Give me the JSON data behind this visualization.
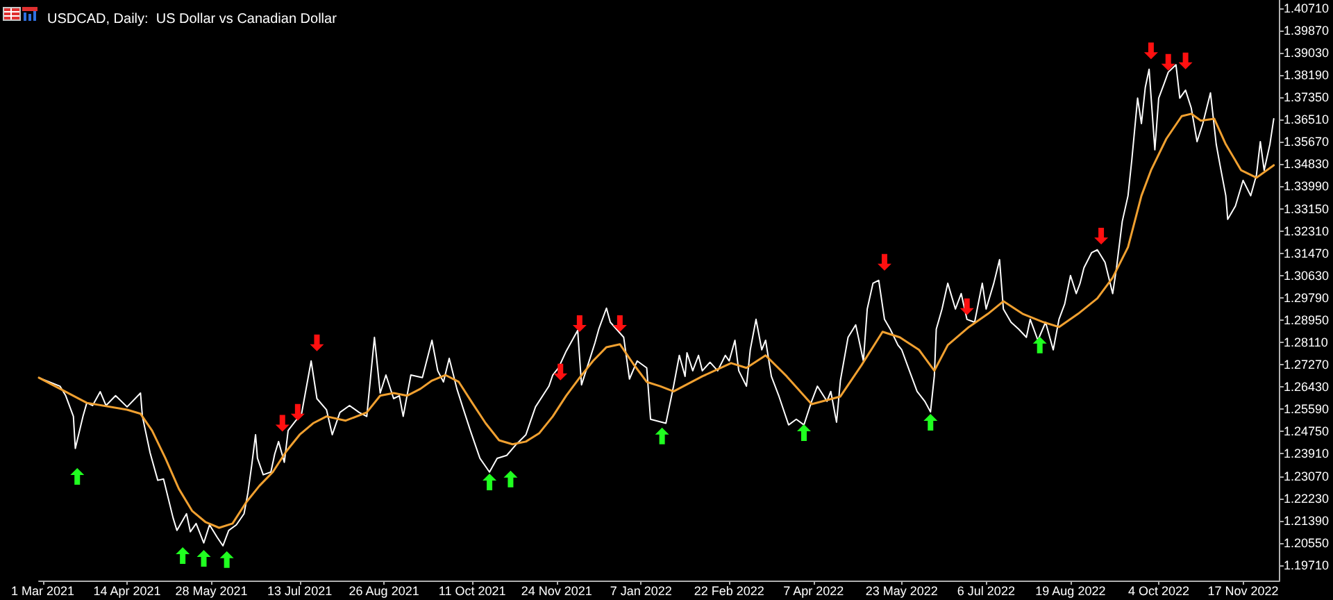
{
  "chart_data": {
    "type": "line",
    "title": "USDCAD, Daily:  US Dollar vs Canadian Dollar",
    "xlim": [
      "2021-02-27",
      "2022-12-06"
    ],
    "ylim": [
      1.1913,
      1.4102
    ],
    "xticks": [
      {
        "value": "2021-03-01",
        "label": "1 Mar 2021"
      },
      {
        "value": "2021-04-14",
        "label": "14 Apr 2021"
      },
      {
        "value": "2021-05-28",
        "label": "28 May 2021"
      },
      {
        "value": "2021-07-13",
        "label": "13 Jul 2021"
      },
      {
        "value": "2021-08-26",
        "label": "26 Aug 2021"
      },
      {
        "value": "2021-10-11",
        "label": "11 Oct 2021"
      },
      {
        "value": "2021-11-24",
        "label": "24 Nov 2021"
      },
      {
        "value": "2022-01-07",
        "label": "7 Jan 2022"
      },
      {
        "value": "2022-02-22",
        "label": "22 Feb 2022"
      },
      {
        "value": "2022-04-07",
        "label": "7 Apr 2022"
      },
      {
        "value": "2022-05-23",
        "label": "23 May 2022"
      },
      {
        "value": "2022-07-06",
        "label": "6 Jul 2022"
      },
      {
        "value": "2022-08-19",
        "label": "19 Aug 2022"
      },
      {
        "value": "2022-10-04",
        "label": "4 Oct 2022"
      },
      {
        "value": "2022-11-17",
        "label": "17 Nov 2022"
      }
    ],
    "yticks": [
      {
        "value": 1.1971,
        "label": "1.19710"
      },
      {
        "value": 1.2055,
        "label": "1.20550"
      },
      {
        "value": 1.2139,
        "label": "1.21390"
      },
      {
        "value": 1.2223,
        "label": "1.22230"
      },
      {
        "value": 1.2307,
        "label": "1.23070"
      },
      {
        "value": 1.2391,
        "label": "1.23910"
      },
      {
        "value": 1.2475,
        "label": "1.24750"
      },
      {
        "value": 1.2559,
        "label": "1.25590"
      },
      {
        "value": 1.2643,
        "label": "1.26430"
      },
      {
        "value": 1.2727,
        "label": "1.27270"
      },
      {
        "value": 1.2811,
        "label": "1.28110"
      },
      {
        "value": 1.2895,
        "label": "1.28950"
      },
      {
        "value": 1.2979,
        "label": "1.29790"
      },
      {
        "value": 1.3063,
        "label": "1.30630"
      },
      {
        "value": 1.3147,
        "label": "1.31470"
      },
      {
        "value": 1.3231,
        "label": "1.32310"
      },
      {
        "value": 1.3315,
        "label": "1.33150"
      },
      {
        "value": 1.3399,
        "label": "1.33990"
      },
      {
        "value": 1.3483,
        "label": "1.34830"
      },
      {
        "value": 1.3567,
        "label": "1.35670"
      },
      {
        "value": 1.3651,
        "label": "1.36510"
      },
      {
        "value": 1.3735,
        "label": "1.37350"
      },
      {
        "value": 1.3819,
        "label": "1.38190"
      },
      {
        "value": 1.3903,
        "label": "1.39030"
      },
      {
        "value": 1.3987,
        "label": "1.39870"
      },
      {
        "value": 1.4071,
        "label": "1.40710"
      }
    ],
    "grid": false,
    "series": [
      {
        "color": "#ffffff",
        "x": [
          "2021-02-27",
          "2021-03-10",
          "2021-03-13",
          "2021-03-17",
          "2021-03-18",
          "2021-03-22",
          "2021-03-24",
          "2021-03-27",
          "2021-03-31",
          "2021-04-03",
          "2021-04-08",
          "2021-04-14",
          "2021-04-21",
          "2021-04-22",
          "2021-04-26",
          "2021-04-30",
          "2021-05-03",
          "2021-05-08",
          "2021-05-10",
          "2021-05-15",
          "2021-05-17",
          "2021-05-20",
          "2021-05-24",
          "2021-05-27",
          "2021-05-31",
          "2021-06-03",
          "2021-06-06",
          "2021-06-10",
          "2021-06-14",
          "2021-06-16",
          "2021-06-18",
          "2021-06-20",
          "2021-06-21",
          "2021-06-24",
          "2021-06-28",
          "2021-06-30",
          "2021-07-02",
          "2021-07-05",
          "2021-07-07",
          "2021-07-11",
          "2021-07-14",
          "2021-07-19",
          "2021-07-22",
          "2021-07-27",
          "2021-07-30",
          "2021-08-03",
          "2021-08-08",
          "2021-08-13",
          "2021-08-17",
          "2021-08-21",
          "2021-08-24",
          "2021-08-27",
          "2021-08-31",
          "2021-09-03",
          "2021-09-05",
          "2021-09-09",
          "2021-09-15",
          "2021-09-20",
          "2021-09-23",
          "2021-09-26",
          "2021-09-29",
          "2021-10-03",
          "2021-10-06",
          "2021-10-10",
          "2021-10-15",
          "2021-10-20",
          "2021-10-24",
          "2021-10-29",
          "2021-11-03",
          "2021-11-08",
          "2021-11-13",
          "2021-11-20",
          "2021-11-22",
          "2021-11-25",
          "2021-11-29",
          "2021-12-05",
          "2021-12-07",
          "2021-12-14",
          "2021-12-16",
          "2021-12-20",
          "2021-12-22",
          "2021-12-29",
          "2022-01-01",
          "2022-01-05",
          "2022-01-10",
          "2022-01-12",
          "2022-01-20",
          "2022-01-24",
          "2022-01-27",
          "2022-01-30",
          "2022-01-31",
          "2022-02-03",
          "2022-02-06",
          "2022-02-08",
          "2022-02-12",
          "2022-02-16",
          "2022-02-20",
          "2022-02-22",
          "2022-02-25",
          "2022-02-27",
          "2022-03-03",
          "2022-03-05",
          "2022-03-08",
          "2022-03-11",
          "2022-03-13",
          "2022-03-16",
          "2022-03-20",
          "2022-03-25",
          "2022-03-29",
          "2022-04-02",
          "2022-04-06",
          "2022-04-09",
          "2022-04-14",
          "2022-04-16",
          "2022-04-19",
          "2022-04-21",
          "2022-04-25",
          "2022-04-29",
          "2022-05-03",
          "2022-05-05",
          "2022-05-08",
          "2022-05-11",
          "2022-05-14",
          "2022-05-17",
          "2022-05-21",
          "2022-05-23",
          "2022-05-27",
          "2022-05-31",
          "2022-06-04",
          "2022-06-07",
          "2022-06-09",
          "2022-06-10",
          "2022-06-13",
          "2022-06-16",
          "2022-06-20",
          "2022-06-23",
          "2022-06-26",
          "2022-06-30",
          "2022-07-04",
          "2022-07-06",
          "2022-07-10",
          "2022-07-13",
          "2022-07-15",
          "2022-07-19",
          "2022-07-23",
          "2022-07-27",
          "2022-07-29",
          "2022-08-02",
          "2022-08-06",
          "2022-08-10",
          "2022-08-13",
          "2022-08-16",
          "2022-08-19",
          "2022-08-22",
          "2022-08-24",
          "2022-08-26",
          "2022-08-30",
          "2022-09-02",
          "2022-09-06",
          "2022-09-10",
          "2022-09-12",
          "2022-09-15",
          "2022-09-18",
          "2022-09-20",
          "2022-09-23",
          "2022-09-25",
          "2022-09-27",
          "2022-09-29",
          "2022-10-02",
          "2022-10-04",
          "2022-10-07",
          "2022-10-09",
          "2022-10-13",
          "2022-10-15",
          "2022-10-18",
          "2022-10-21",
          "2022-10-24",
          "2022-10-27",
          "2022-10-31",
          "2022-11-03",
          "2022-11-05",
          "2022-11-08",
          "2022-11-09",
          "2022-11-13",
          "2022-11-17",
          "2022-11-21",
          "2022-11-24",
          "2022-11-26",
          "2022-11-28",
          "2022-12-01",
          "2022-12-03"
        ],
        "values": [
          1.2678,
          1.2646,
          1.261,
          1.2532,
          1.2411,
          1.2532,
          1.2583,
          1.2573,
          1.2625,
          1.2573,
          1.261,
          1.2568,
          1.262,
          1.2532,
          1.2395,
          1.2291,
          1.2296,
          1.2149,
          1.2102,
          1.2165,
          1.2097,
          1.2128,
          1.2055,
          1.2123,
          1.2076,
          1.2044,
          1.2102,
          1.2123,
          1.2165,
          1.2243,
          1.2348,
          1.2463,
          1.2374,
          1.2312,
          1.2322,
          1.239,
          1.2437,
          1.2359,
          1.2479,
          1.2516,
          1.2542,
          1.2741,
          1.2599,
          1.2557,
          1.2463,
          1.2547,
          1.2573,
          1.2547,
          1.2532,
          1.283,
          1.262,
          1.2688,
          1.2599,
          1.261,
          1.2532,
          1.2688,
          1.2678,
          1.2819,
          1.2704,
          1.2662,
          1.2751,
          1.2636,
          1.2568,
          1.2479,
          1.2374,
          1.2322,
          1.2374,
          1.2385,
          1.2427,
          1.2463,
          1.2568,
          1.2646,
          1.2688,
          1.2715,
          1.2778,
          1.2856,
          1.2651,
          1.2809,
          1.2861,
          1.294,
          1.2887,
          1.283,
          1.2673,
          1.2741,
          1.2715,
          1.2521,
          1.2506,
          1.2646,
          1.2762,
          1.2683,
          1.2772,
          1.2704,
          1.2762,
          1.2704,
          1.2736,
          1.2704,
          1.2762,
          1.2741,
          1.2819,
          1.2704,
          1.2646,
          1.2783,
          1.2898,
          1.2783,
          1.2819,
          1.2683,
          1.2607,
          1.25,
          1.2521,
          1.25,
          1.2589,
          1.2646,
          1.2589,
          1.2626,
          1.251,
          1.2667,
          1.283,
          1.2877,
          1.2741,
          1.2937,
          1.3034,
          1.3045,
          1.2898,
          1.2861,
          1.2801,
          1.2783,
          1.2704,
          1.2626,
          1.2589,
          1.2549,
          1.2685,
          1.2861,
          1.2937,
          1.3034,
          1.2937,
          1.2995,
          1.2898,
          1.2887,
          1.3034,
          1.2937,
          1.3034,
          1.3123,
          1.2937,
          1.2887,
          1.2861,
          1.283,
          1.2898,
          1.2819,
          1.2887,
          1.2783,
          1.2898,
          1.2956,
          1.3063,
          1.2995,
          1.3034,
          1.3092,
          1.3149,
          1.316,
          1.3113,
          1.2995,
          1.3092,
          1.3267,
          1.3364,
          1.35,
          1.3732,
          1.3636,
          1.3772,
          1.3841,
          1.3537,
          1.3732,
          1.379,
          1.383,
          1.3858,
          1.3732,
          1.3762,
          1.3694,
          1.3568,
          1.3636,
          1.3752,
          1.3558,
          1.3479,
          1.3364,
          1.3275,
          1.3325,
          1.3422,
          1.3364,
          1.3443,
          1.3568,
          1.346,
          1.3558,
          1.3654
        ]
      },
      {
        "color": "#f0a030",
        "x": [
          "2021-02-27",
          "2021-03-24",
          "2021-04-14",
          "2021-04-21",
          "2021-04-27",
          "2021-05-04",
          "2021-05-11",
          "2021-05-18",
          "2021-05-25",
          "2021-06-01",
          "2021-06-08",
          "2021-06-15",
          "2021-06-22",
          "2021-06-29",
          "2021-07-06",
          "2021-07-13",
          "2021-07-20",
          "2021-07-27",
          "2021-08-06",
          "2021-08-17",
          "2021-08-24",
          "2021-08-31",
          "2021-09-07",
          "2021-09-14",
          "2021-09-20",
          "2021-09-27",
          "2021-10-04",
          "2021-10-11",
          "2021-10-18",
          "2021-10-25",
          "2021-11-01",
          "2021-11-08",
          "2021-11-15",
          "2021-11-22",
          "2021-11-29",
          "2021-12-06",
          "2021-12-13",
          "2021-12-20",
          "2021-12-27",
          "2022-01-03",
          "2022-01-10",
          "2022-01-17",
          "2022-01-24",
          "2022-02-08",
          "2022-02-23",
          "2022-03-03",
          "2022-03-13",
          "2022-03-24",
          "2022-04-06",
          "2022-04-21",
          "2022-05-02",
          "2022-05-13",
          "2022-05-22",
          "2022-06-01",
          "2022-06-09",
          "2022-06-16",
          "2022-06-27",
          "2022-07-07",
          "2022-07-15",
          "2022-07-25",
          "2022-08-05",
          "2022-08-13",
          "2022-08-23",
          "2022-09-02",
          "2022-09-10",
          "2022-09-18",
          "2022-09-25",
          "2022-09-30",
          "2022-10-08",
          "2022-10-16",
          "2022-10-21",
          "2022-10-26",
          "2022-11-02",
          "2022-11-08",
          "2022-11-16",
          "2022-11-24",
          "2022-12-03"
        ],
        "values": [
          1.2678,
          1.2583,
          1.2557,
          1.2542,
          1.2479,
          1.2374,
          1.2259,
          1.2175,
          1.2133,
          1.2112,
          1.2128,
          1.2207,
          1.227,
          1.2322,
          1.24,
          1.2463,
          1.2506,
          1.2532,
          1.2516,
          1.2547,
          1.261,
          1.262,
          1.261,
          1.2636,
          1.2667,
          1.2688,
          1.2662,
          1.2583,
          1.2506,
          1.2442,
          1.2427,
          1.2437,
          1.2469,
          1.2532,
          1.261,
          1.2678,
          1.2741,
          1.2793,
          1.2804,
          1.273,
          1.2662,
          1.2646,
          1.2626,
          1.2683,
          1.2733,
          1.2715,
          1.2762,
          1.2683,
          1.2578,
          1.2607,
          1.2725,
          1.2851,
          1.283,
          1.2783,
          1.2704,
          1.2801,
          1.2869,
          1.2919,
          1.2966,
          1.2919,
          1.2887,
          1.2869,
          1.2919,
          1.2977,
          1.3055,
          1.317,
          1.3364,
          1.346,
          1.3579,
          1.3664,
          1.3673,
          1.3647,
          1.3654,
          1.3558,
          1.346,
          1.3432,
          1.3479
        ]
      },
      {
        "type": "scatter",
        "color": "#ff1010",
        "x": [
          "2021-07-04",
          "2021-07-12",
          "2021-07-22",
          "2021-11-26",
          "2021-12-06",
          "2021-12-27",
          "2022-05-14",
          "2022-06-26",
          "2022-09-04",
          "2022-09-30",
          "2022-10-09",
          "2022-10-18"
        ],
        "values": [
          1.2506,
          1.2547,
          1.2809,
          1.2699,
          1.2882,
          1.2882,
          1.3113,
          1.2945,
          1.3212,
          1.391,
          1.3867,
          1.3872
        ]
      },
      {
        "type": "scatter",
        "color": "#20ff20",
        "x": [
          "2021-03-19",
          "2021-05-13",
          "2021-05-24",
          "2021-06-05",
          "2021-10-20",
          "2021-10-31",
          "2022-01-18",
          "2022-04-02",
          "2022-06-07",
          "2022-08-03"
        ],
        "values": [
          1.2306,
          1.2007,
          1.1997,
          1.1992,
          1.2285,
          1.2296,
          1.2458,
          1.2471,
          1.251,
          1.2801
        ]
      }
    ]
  }
}
